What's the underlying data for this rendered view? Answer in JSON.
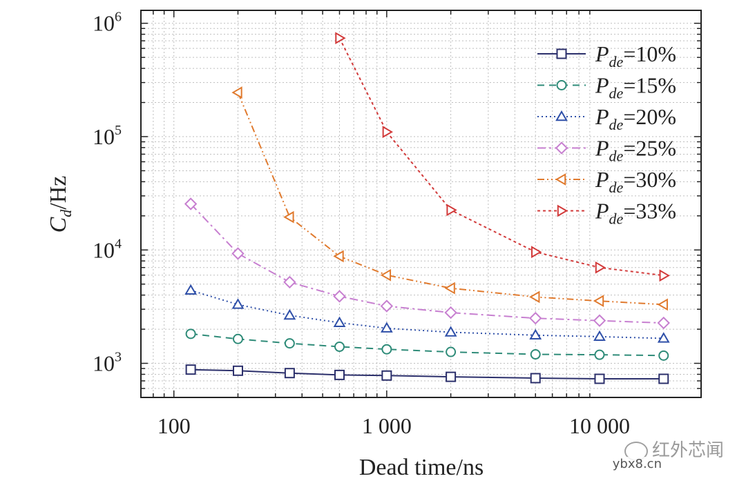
{
  "chart_data": {
    "type": "line",
    "xscale": "log",
    "yscale": "log",
    "xlim": [
      70,
      30000
    ],
    "ylim": [
      500,
      1300000
    ],
    "xlabel": "Dead time/ns",
    "ylabel_main": "C",
    "ylabel_sub": "d",
    "ylabel_unit": "/Hz",
    "xticks": [
      {
        "value": 100,
        "label": "100"
      },
      {
        "value": 1000,
        "label": "1 000"
      },
      {
        "value": 10000,
        "label": "10 000"
      }
    ],
    "yticks": [
      {
        "value": 1000,
        "base": "10",
        "exp": "3"
      },
      {
        "value": 10000,
        "base": "10",
        "exp": "4"
      },
      {
        "value": 100000,
        "base": "10",
        "exp": "5"
      },
      {
        "value": 1000000,
        "base": "10",
        "exp": "6"
      }
    ],
    "grid": true,
    "legend_position": "top-right",
    "series": [
      {
        "name": "Pde=10%",
        "label_var": "P",
        "label_sub": "de",
        "label_val": "=10%",
        "color": "#2b2f6b",
        "dash": "",
        "marker": "square",
        "x": [
          120,
          200,
          350,
          600,
          1000,
          2000,
          5000,
          10000,
          20000
        ],
        "y": [
          880,
          860,
          820,
          790,
          780,
          760,
          740,
          730,
          730
        ]
      },
      {
        "name": "Pde=15%",
        "label_var": "P",
        "label_sub": "de",
        "label_val": "=15%",
        "color": "#2e8b78",
        "dash": "10 7",
        "marker": "circle",
        "x": [
          120,
          200,
          350,
          600,
          1000,
          2000,
          5000,
          10000,
          20000
        ],
        "y": [
          1820,
          1640,
          1500,
          1400,
          1330,
          1260,
          1200,
          1190,
          1170
        ]
      },
      {
        "name": "Pde=20%",
        "label_var": "P",
        "label_sub": "de",
        "label_val": "=20%",
        "color": "#2e4fa8",
        "dash": "2 4",
        "marker": "triangle-up",
        "x": [
          120,
          200,
          350,
          600,
          1000,
          2000,
          5000,
          10000,
          20000
        ],
        "y": [
          4400,
          3300,
          2650,
          2280,
          2040,
          1880,
          1770,
          1720,
          1660
        ]
      },
      {
        "name": "Pde=25%",
        "label_var": "P",
        "label_sub": "de",
        "label_val": "=25%",
        "color": "#c77fd0",
        "dash": "12 5 3 5",
        "marker": "diamond",
        "x": [
          120,
          200,
          350,
          600,
          1000,
          2000,
          5000,
          10000,
          20000
        ],
        "y": [
          25500,
          9300,
          5200,
          3900,
          3200,
          2800,
          2500,
          2380,
          2270
        ]
      },
      {
        "name": "Pde=30%",
        "label_var": "P",
        "label_sub": "de",
        "label_val": "=30%",
        "color": "#e07a2e",
        "dash": "10 4 2 4 2 4",
        "marker": "triangle-left",
        "x": [
          200,
          350,
          600,
          1000,
          2000,
          5000,
          10000,
          20000
        ],
        "y": [
          245000,
          19500,
          8800,
          6000,
          4600,
          3850,
          3550,
          3300
        ]
      },
      {
        "name": "Pde=33%",
        "label_var": "P",
        "label_sub": "de",
        "label_val": "=33%",
        "color": "#d23a3a",
        "dash": "4 4",
        "marker": "triangle-right",
        "x": [
          600,
          1000,
          2000,
          5000,
          10000,
          20000
        ],
        "y": [
          740000,
          110000,
          22500,
          9600,
          7000,
          5950
        ]
      }
    ]
  },
  "watermark": {
    "text": "红外芯闻",
    "sub": "ybx8.cn"
  }
}
